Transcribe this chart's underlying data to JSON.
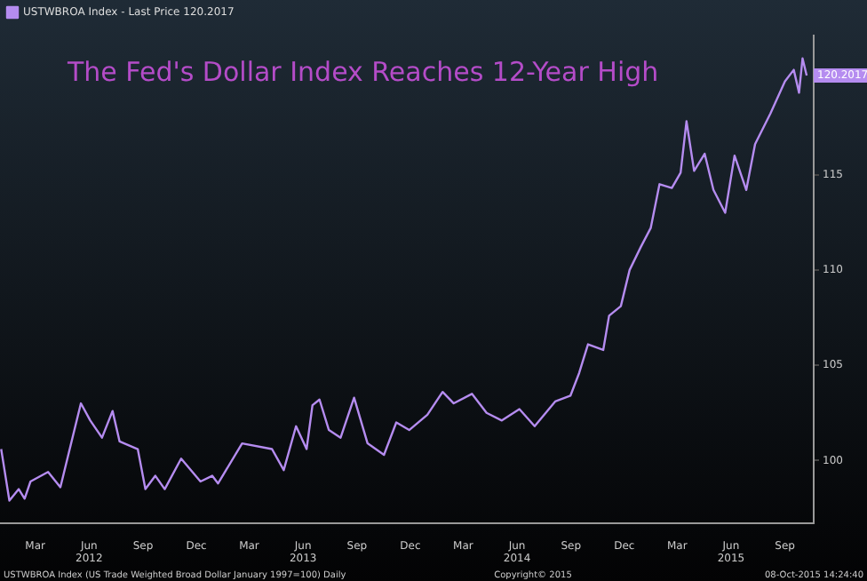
{
  "chart_data": {
    "type": "line",
    "title": "The Fed's Dollar Index Reaches 12-Year High",
    "x": [
      "2012-01-03",
      "2012-01-17",
      "2012-02-02",
      "2012-02-12",
      "2012-02-22",
      "2012-03-23",
      "2012-04-13",
      "2012-05-18",
      "2012-06-03",
      "2012-06-23",
      "2012-07-11",
      "2012-07-23",
      "2012-08-23",
      "2012-09-05",
      "2012-09-22",
      "2012-10-08",
      "2012-11-05",
      "2012-12-08",
      "2012-12-28",
      "2013-01-07",
      "2013-02-17",
      "2013-04-09",
      "2013-04-29",
      "2013-05-20",
      "2013-06-07",
      "2013-06-17",
      "2013-06-29",
      "2013-07-15",
      "2013-08-04",
      "2013-08-27",
      "2013-09-19",
      "2013-10-17",
      "2013-11-07",
      "2013-11-29",
      "2013-12-30",
      "2014-01-25",
      "2014-02-13",
      "2014-03-16",
      "2014-04-10",
      "2014-05-06",
      "2014-06-05",
      "2014-07-01",
      "2014-08-05",
      "2014-08-31",
      "2014-09-15",
      "2014-09-30",
      "2014-10-26",
      "2014-11-05",
      "2014-11-25",
      "2014-12-10",
      "2014-12-29",
      "2015-01-15",
      "2015-01-30",
      "2015-02-20",
      "2015-03-07",
      "2015-03-17",
      "2015-03-30",
      "2015-04-17",
      "2015-05-02",
      "2015-05-22",
      "2015-06-07",
      "2015-06-27",
      "2015-07-12",
      "2015-08-07",
      "2015-09-01",
      "2015-09-16",
      "2015-09-25",
      "2015-10-01",
      "2015-10-08"
    ],
    "series": [
      {
        "name": "USTWBROA Index - Last Price 120.2017",
        "color": "#b58cf0",
        "values": [
          100.6,
          97.9,
          98.5,
          98.0,
          98.9,
          99.4,
          98.6,
          103.0,
          102.1,
          101.2,
          102.6,
          101.0,
          100.6,
          98.5,
          99.2,
          98.5,
          100.1,
          98.9,
          99.2,
          98.8,
          100.9,
          100.6,
          99.5,
          101.8,
          100.6,
          102.9,
          103.2,
          101.6,
          101.2,
          103.3,
          100.9,
          100.3,
          102.0,
          101.6,
          102.4,
          103.6,
          103.0,
          103.5,
          102.5,
          102.1,
          102.7,
          101.8,
          103.1,
          103.4,
          104.6,
          106.1,
          105.8,
          107.6,
          108.1,
          110.0,
          111.2,
          112.2,
          114.5,
          114.3,
          115.1,
          117.8,
          115.2,
          116.1,
          114.2,
          113.0,
          116.0,
          114.2,
          116.6,
          118.2,
          119.9,
          120.5,
          119.3,
          121.1,
          120.2
        ]
      }
    ],
    "xlim": [
      "2012-01-01",
      "2015-10-20"
    ],
    "ylim": [
      96.7,
      122.3
    ],
    "yticks": [
      100,
      105,
      110,
      115
    ],
    "xticks": [
      {
        "value": "2012-03-01",
        "label": "Mar"
      },
      {
        "value": "2012-06-01",
        "label": "Jun 2012"
      },
      {
        "value": "2012-09-01",
        "label": "Sep"
      },
      {
        "value": "2012-12-01",
        "label": "Dec"
      },
      {
        "value": "2013-03-01",
        "label": "Mar"
      },
      {
        "value": "2013-06-01",
        "label": "Jun 2013"
      },
      {
        "value": "2013-09-01",
        "label": "Sep"
      },
      {
        "value": "2013-12-01",
        "label": "Dec"
      },
      {
        "value": "2014-03-01",
        "label": "Mar"
      },
      {
        "value": "2014-06-01",
        "label": "Jun 2014"
      },
      {
        "value": "2014-09-01",
        "label": "Sep"
      },
      {
        "value": "2014-12-01",
        "label": "Dec"
      },
      {
        "value": "2015-03-01",
        "label": "Mar"
      },
      {
        "value": "2015-06-01",
        "label": "Jun 2015"
      },
      {
        "value": "2015-09-01",
        "label": "Sep"
      }
    ],
    "annotations": [
      {
        "text": "120.2017",
        "x": "2015-10-08",
        "y": 120.2017
      },
      "USTWBROA Index (US Trade Weighted Broad Dollar January 1997=100) Daily",
      "Copyright© 2015",
      "08-Oct-2015 14:24:40"
    ],
    "grid": false,
    "legend": "top left",
    "marker": "none",
    "line_style": "solid"
  }
}
